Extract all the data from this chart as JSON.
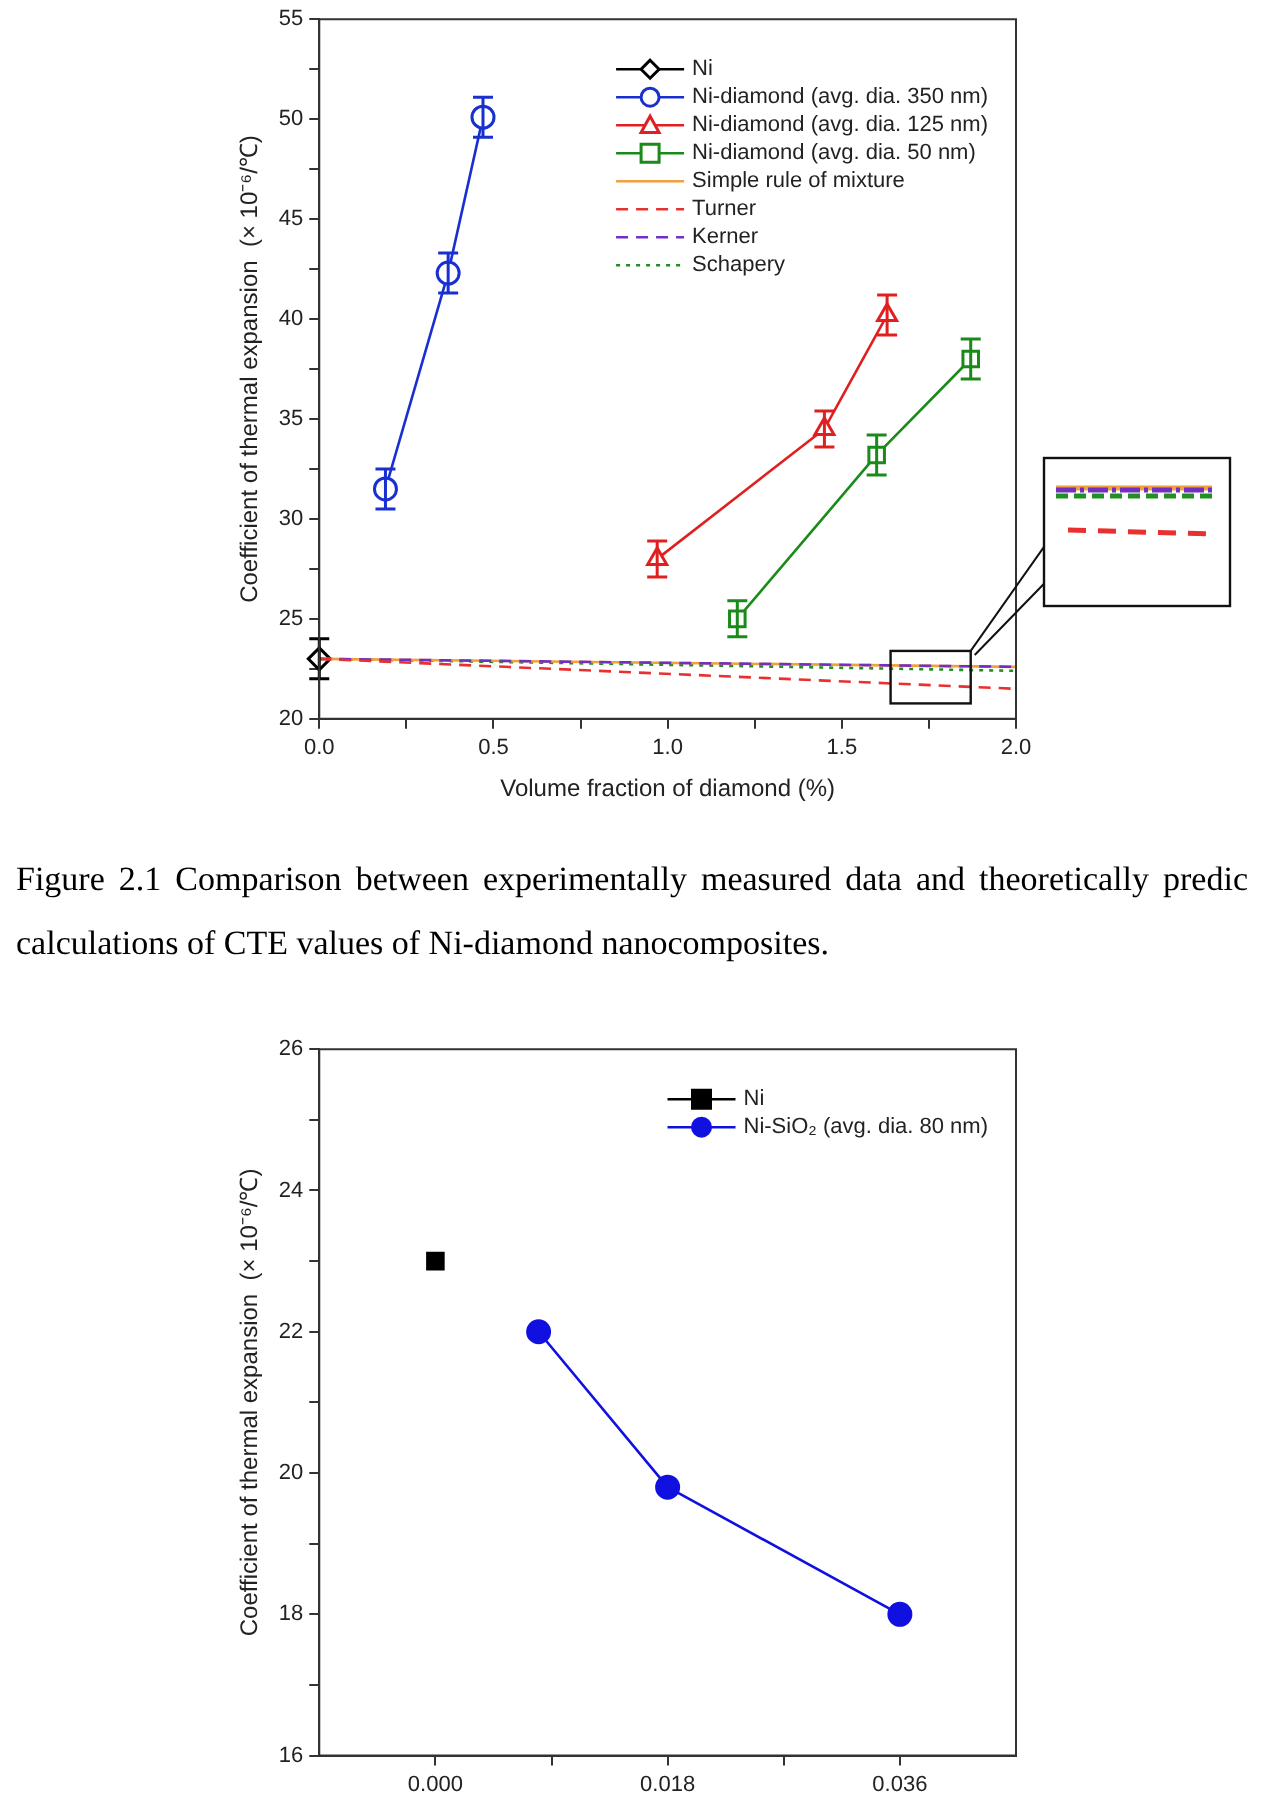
{
  "chart_data": [
    {
      "type": "scatter",
      "xlabel": "Volume fraction of diamond (%)",
      "ylabel": "Coefficient of thermal expansion  (× 10⁻⁶/℃)",
      "xlim": [
        0,
        2
      ],
      "ylim": [
        20,
        55
      ],
      "xticks": [
        {
          "value": 0,
          "label": "0.0"
        },
        {
          "value": 0.25,
          "label": null
        },
        {
          "value": 0.5,
          "label": "0.5"
        },
        {
          "value": 0.75,
          "label": null
        },
        {
          "value": 1,
          "label": "1.0"
        },
        {
          "value": 1.25,
          "label": null
        },
        {
          "value": 1.5,
          "label": "1.5"
        },
        {
          "value": 1.75,
          "label": null
        },
        {
          "value": 2,
          "label": "2.0"
        }
      ],
      "yticks": [
        20,
        {
          "value": 22.5,
          "label": null
        },
        25,
        {
          "value": 27.5,
          "label": null
        },
        30,
        {
          "value": 32.5,
          "label": null
        },
        35,
        {
          "value": 37.5,
          "label": null
        },
        40,
        {
          "value": 42.5,
          "label": null
        },
        45,
        {
          "value": 47.5,
          "label": null
        },
        50,
        {
          "value": 52.5,
          "label": null
        },
        55
      ],
      "grid": false,
      "legend": "top right",
      "series": [
        {
          "name": "Ni",
          "type": "scatter",
          "color": "#000000",
          "marker": "diamond",
          "x": [
            0
          ],
          "values": [
            23
          ],
          "errors": [
            1
          ]
        },
        {
          "name": "Ni-diamond (avg. dia. 350 nm)",
          "type": "line",
          "color": "#1a2fd0",
          "marker": "circle",
          "line_style": "solid",
          "x": [
            0.19,
            0.37,
            0.47
          ],
          "values": [
            31.5,
            42.3,
            50.1
          ],
          "errors": [
            1,
            1,
            1
          ]
        },
        {
          "name": "Ni-diamond (avg. dia. 125 nm)",
          "type": "line",
          "color": "#e02020",
          "marker": "triangle",
          "line_style": "solid",
          "x": [
            0.97,
            1.45,
            1.63
          ],
          "values": [
            28,
            34.5,
            40.2
          ],
          "errors": [
            0.9,
            0.9,
            1
          ]
        },
        {
          "name": "Ni-diamond (avg. dia. 50 nm)",
          "type": "line",
          "color": "#1a8a1a",
          "marker": "square",
          "line_style": "solid",
          "x": [
            1.2,
            1.6,
            1.87
          ],
          "values": [
            25,
            33.2,
            38
          ],
          "errors": [
            0.9,
            1,
            1
          ]
        },
        {
          "name": "Simple rule of mixture",
          "type": "line",
          "color": "#f0a040",
          "marker": "none",
          "line_style": "solid",
          "x": [
            0,
            2
          ],
          "values": [
            23,
            22.6
          ]
        },
        {
          "name": "Turner",
          "type": "line",
          "color": "#e83030",
          "marker": "none",
          "line_style": "dashed",
          "x": [
            0,
            2
          ],
          "values": [
            23,
            21.5
          ]
        },
        {
          "name": "Kerner",
          "type": "line",
          "color": "#7030c0",
          "marker": "none",
          "line_style": "dashed",
          "x": [
            0,
            2
          ],
          "values": [
            23,
            22.6
          ]
        },
        {
          "name": "Schapery",
          "type": "line",
          "color": "#209020",
          "marker": "none",
          "line_style": "dotted",
          "x": [
            0,
            2
          ],
          "values": [
            23,
            22.4
          ]
        }
      ],
      "annotations": [
        "Figure 2.1 Comparison between experimentally measured data and theoretically predic calculations of CTE values of Ni-diamond nanocomposites."
      ]
    },
    {
      "type": "scatter",
      "ylabel": "Coefficient of thermal expansion  (× 10⁻⁶/℃)",
      "xlim": [
        -0.009,
        0.045
      ],
      "ylim": [
        16,
        26
      ],
      "xticks": [
        {
          "value": 0,
          "label": "0.000"
        },
        {
          "value": 0.009,
          "label": null
        },
        {
          "value": 0.018,
          "label": "0.018"
        },
        {
          "value": 0.027,
          "label": null
        },
        {
          "value": 0.036,
          "label": "0.036"
        }
      ],
      "yticks": [
        16,
        {
          "value": 17,
          "label": null
        },
        18,
        {
          "value": 19,
          "label": null
        },
        20,
        {
          "value": 21,
          "label": null
        },
        22,
        {
          "value": 23,
          "label": null
        },
        24,
        {
          "value": 25,
          "label": null
        },
        26
      ],
      "grid": false,
      "legend": "top right",
      "series": [
        {
          "name": "Ni",
          "type": "scatter",
          "color": "#000000",
          "marker": "square",
          "x": [
            0
          ],
          "values": [
            23
          ]
        },
        {
          "name": "Ni-SiO₂ (avg. dia. 80 nm)",
          "type": "line",
          "color": "#1010e0",
          "marker": "circle",
          "line_style": "solid",
          "x": [
            0.008,
            0.018,
            0.036
          ],
          "values": [
            22,
            19.8,
            18
          ]
        }
      ]
    }
  ]
}
